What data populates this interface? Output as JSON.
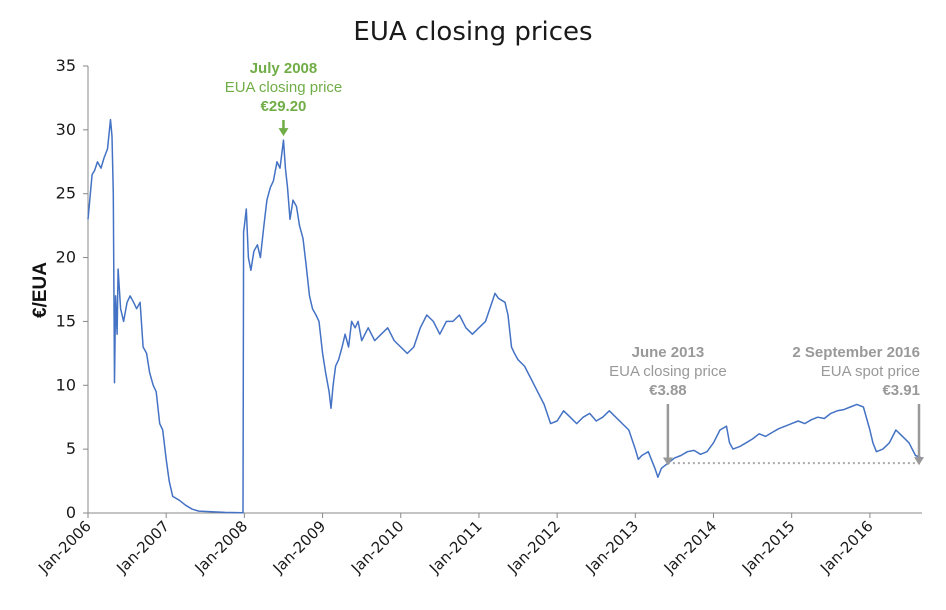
{
  "chart_data": {
    "type": "line",
    "title": "EUA closing prices",
    "ylabel": "€/EUA",
    "xlabel": "",
    "ylim": [
      0,
      35
    ],
    "yticks": [
      0,
      5,
      10,
      15,
      20,
      25,
      30,
      35
    ],
    "xlim": [
      "2006-01",
      "2016-09"
    ],
    "xticks": [
      "Jan-2006",
      "Jan-2007",
      "Jan-2008",
      "Jan-2009",
      "Jan-2010",
      "Jan-2011",
      "Jan-2012",
      "Jan-2013",
      "Jan-2014",
      "Jan-2015",
      "Jan-2016"
    ],
    "grid": false,
    "colors": {
      "line": "#4472c4",
      "green": "#70ad47",
      "gray": "#999999",
      "dotted": "#aaaaaa"
    },
    "series": [
      {
        "values": [
          [
            "2006-01",
            23.0
          ],
          [
            "2006-01-20",
            26.5
          ],
          [
            "2006-02",
            26.8
          ],
          [
            "2006-02-15",
            27.5
          ],
          [
            "2006-03",
            27.0
          ],
          [
            "2006-03-15",
            27.8
          ],
          [
            "2006-04",
            28.5
          ],
          [
            "2006-04-15",
            30.8
          ],
          [
            "2006-04-22",
            29.5
          ],
          [
            "2006-04-28",
            25.0
          ],
          [
            "2006-05-03",
            10.2
          ],
          [
            "2006-05-08",
            17.0
          ],
          [
            "2006-05-15",
            14.0
          ],
          [
            "2006-05-20",
            19.1
          ],
          [
            "2006-06",
            16.0
          ],
          [
            "2006-06-15",
            15.0
          ],
          [
            "2006-07",
            16.5
          ],
          [
            "2006-07-15",
            17.0
          ],
          [
            "2006-08",
            16.5
          ],
          [
            "2006-08-15",
            16.0
          ],
          [
            "2006-09",
            16.5
          ],
          [
            "2006-09-15",
            13.0
          ],
          [
            "2006-10",
            12.5
          ],
          [
            "2006-10-15",
            11.0
          ],
          [
            "2006-11",
            10.0
          ],
          [
            "2006-11-15",
            9.5
          ],
          [
            "2006-12",
            7.0
          ],
          [
            "2006-12-15",
            6.5
          ],
          [
            "2007-01",
            4.2
          ],
          [
            "2007-01-15",
            2.5
          ],
          [
            "2007-02",
            1.3
          ],
          [
            "2007-03",
            1.0
          ],
          [
            "2007-04",
            0.6
          ],
          [
            "2007-05",
            0.3
          ],
          [
            "2007-06",
            0.15
          ],
          [
            "2007-08",
            0.1
          ],
          [
            "2007-10",
            0.05
          ],
          [
            "2007-12-25",
            0.02
          ],
          [
            "2007-12-28",
            22.0
          ],
          [
            "2008-01",
            22.5
          ],
          [
            "2008-01-10",
            23.8
          ],
          [
            "2008-01-20",
            20.0
          ],
          [
            "2008-02",
            19.0
          ],
          [
            "2008-02-15",
            20.5
          ],
          [
            "2008-03",
            21.0
          ],
          [
            "2008-03-15",
            20.0
          ],
          [
            "2008-04",
            22.5
          ],
          [
            "2008-04-15",
            24.5
          ],
          [
            "2008-05",
            25.5
          ],
          [
            "2008-05-15",
            26.0
          ],
          [
            "2008-06",
            27.5
          ],
          [
            "2008-06-15",
            27.0
          ],
          [
            "2008-07",
            29.2
          ],
          [
            "2008-07-10",
            27.0
          ],
          [
            "2008-07-20",
            25.5
          ],
          [
            "2008-08",
            23.0
          ],
          [
            "2008-08-15",
            24.5
          ],
          [
            "2008-09",
            24.0
          ],
          [
            "2008-09-15",
            22.5
          ],
          [
            "2008-10",
            21.5
          ],
          [
            "2008-10-15",
            19.5
          ],
          [
            "2008-11",
            17.0
          ],
          [
            "2008-11-15",
            16.0
          ],
          [
            "2008-12",
            15.5
          ],
          [
            "2008-12-15",
            15.0
          ],
          [
            "2009-01",
            12.5
          ],
          [
            "2009-01-15",
            11.0
          ],
          [
            "2009-02",
            9.5
          ],
          [
            "2009-02-10",
            8.2
          ],
          [
            "2009-02-20",
            10.0
          ],
          [
            "2009-03",
            11.5
          ],
          [
            "2009-03-15",
            12.0
          ],
          [
            "2009-04",
            13.0
          ],
          [
            "2009-04-15",
            14.0
          ],
          [
            "2009-05",
            13.0
          ],
          [
            "2009-05-15",
            15.0
          ],
          [
            "2009-06",
            14.5
          ],
          [
            "2009-06-15",
            15.0
          ],
          [
            "2009-07",
            13.5
          ],
          [
            "2009-08",
            14.5
          ],
          [
            "2009-09",
            13.5
          ],
          [
            "2009-10",
            14.0
          ],
          [
            "2009-11",
            14.5
          ],
          [
            "2009-12",
            13.5
          ],
          [
            "2010-01",
            13.0
          ],
          [
            "2010-02",
            12.5
          ],
          [
            "2010-03",
            13.0
          ],
          [
            "2010-04",
            14.5
          ],
          [
            "2010-05",
            15.5
          ],
          [
            "2010-06",
            15.0
          ],
          [
            "2010-07",
            14.0
          ],
          [
            "2010-08",
            15.0
          ],
          [
            "2010-09",
            15.0
          ],
          [
            "2010-10",
            15.5
          ],
          [
            "2010-11",
            14.5
          ],
          [
            "2010-12",
            14.0
          ],
          [
            "2011-01",
            14.5
          ],
          [
            "2011-02",
            15.0
          ],
          [
            "2011-03",
            16.5
          ],
          [
            "2011-03-15",
            17.2
          ],
          [
            "2011-04",
            16.8
          ],
          [
            "2011-05",
            16.5
          ],
          [
            "2011-05-15",
            15.5
          ],
          [
            "2011-06",
            13.0
          ],
          [
            "2011-06-15",
            12.5
          ],
          [
            "2011-07",
            12.0
          ],
          [
            "2011-08",
            11.5
          ],
          [
            "2011-09",
            10.5
          ],
          [
            "2011-10",
            9.5
          ],
          [
            "2011-11",
            8.5
          ],
          [
            "2011-12",
            7.0
          ],
          [
            "2012-01",
            7.2
          ],
          [
            "2012-02",
            8.0
          ],
          [
            "2012-03",
            7.5
          ],
          [
            "2012-04",
            7.0
          ],
          [
            "2012-05",
            7.5
          ],
          [
            "2012-06",
            7.8
          ],
          [
            "2012-07",
            7.2
          ],
          [
            "2012-08",
            7.5
          ],
          [
            "2012-09",
            8.0
          ],
          [
            "2012-10",
            7.5
          ],
          [
            "2012-11",
            7.0
          ],
          [
            "2012-12",
            6.5
          ],
          [
            "2013-01",
            5.0
          ],
          [
            "2013-01-15",
            4.2
          ],
          [
            "2013-02",
            4.5
          ],
          [
            "2013-03",
            4.8
          ],
          [
            "2013-04",
            3.5
          ],
          [
            "2013-04-15",
            2.8
          ],
          [
            "2013-05",
            3.5
          ],
          [
            "2013-06",
            3.9
          ],
          [
            "2013-07",
            4.3
          ],
          [
            "2013-08",
            4.5
          ],
          [
            "2013-09",
            4.8
          ],
          [
            "2013-10",
            4.9
          ],
          [
            "2013-11",
            4.6
          ],
          [
            "2013-12",
            4.8
          ],
          [
            "2014-01",
            5.5
          ],
          [
            "2014-02",
            6.5
          ],
          [
            "2014-03",
            6.8
          ],
          [
            "2014-03-15",
            5.5
          ],
          [
            "2014-04",
            5.0
          ],
          [
            "2014-05",
            5.2
          ],
          [
            "2014-06",
            5.5
          ],
          [
            "2014-07",
            5.8
          ],
          [
            "2014-08",
            6.2
          ],
          [
            "2014-09",
            6.0
          ],
          [
            "2014-10",
            6.3
          ],
          [
            "2014-11",
            6.6
          ],
          [
            "2014-12",
            6.8
          ],
          [
            "2015-01",
            7.0
          ],
          [
            "2015-02",
            7.2
          ],
          [
            "2015-03",
            7.0
          ],
          [
            "2015-04",
            7.3
          ],
          [
            "2015-05",
            7.5
          ],
          [
            "2015-06",
            7.4
          ],
          [
            "2015-07",
            7.8
          ],
          [
            "2015-08",
            8.0
          ],
          [
            "2015-09",
            8.1
          ],
          [
            "2015-10",
            8.3
          ],
          [
            "2015-11",
            8.5
          ],
          [
            "2015-12",
            8.3
          ],
          [
            "2016-01",
            6.5
          ],
          [
            "2016-01-15",
            5.5
          ],
          [
            "2016-02",
            4.8
          ],
          [
            "2016-03",
            5.0
          ],
          [
            "2016-04",
            5.5
          ],
          [
            "2016-05",
            6.5
          ],
          [
            "2016-06",
            6.0
          ],
          [
            "2016-07",
            5.5
          ],
          [
            "2016-08",
            4.5
          ],
          [
            "2016-09",
            4.3
          ]
        ]
      }
    ],
    "reference_line": {
      "y": 3.91,
      "from": "2013-06",
      "to": "2016-09",
      "style": "dotted"
    },
    "annotations": [
      {
        "lines": [
          "July 2008",
          "EUA closing price",
          "€29.20"
        ],
        "x": "2008-07",
        "y": 29.2,
        "color": "green"
      },
      {
        "lines": [
          "June 2013",
          "EUA closing price",
          "€3.88"
        ],
        "x": "2013-06",
        "y": 3.88,
        "color": "gray"
      },
      {
        "lines": [
          "2 September 2016",
          "EUA spot price",
          "€3.91"
        ],
        "x": "2016-09-02",
        "y": 3.91,
        "color": "gray"
      }
    ]
  }
}
